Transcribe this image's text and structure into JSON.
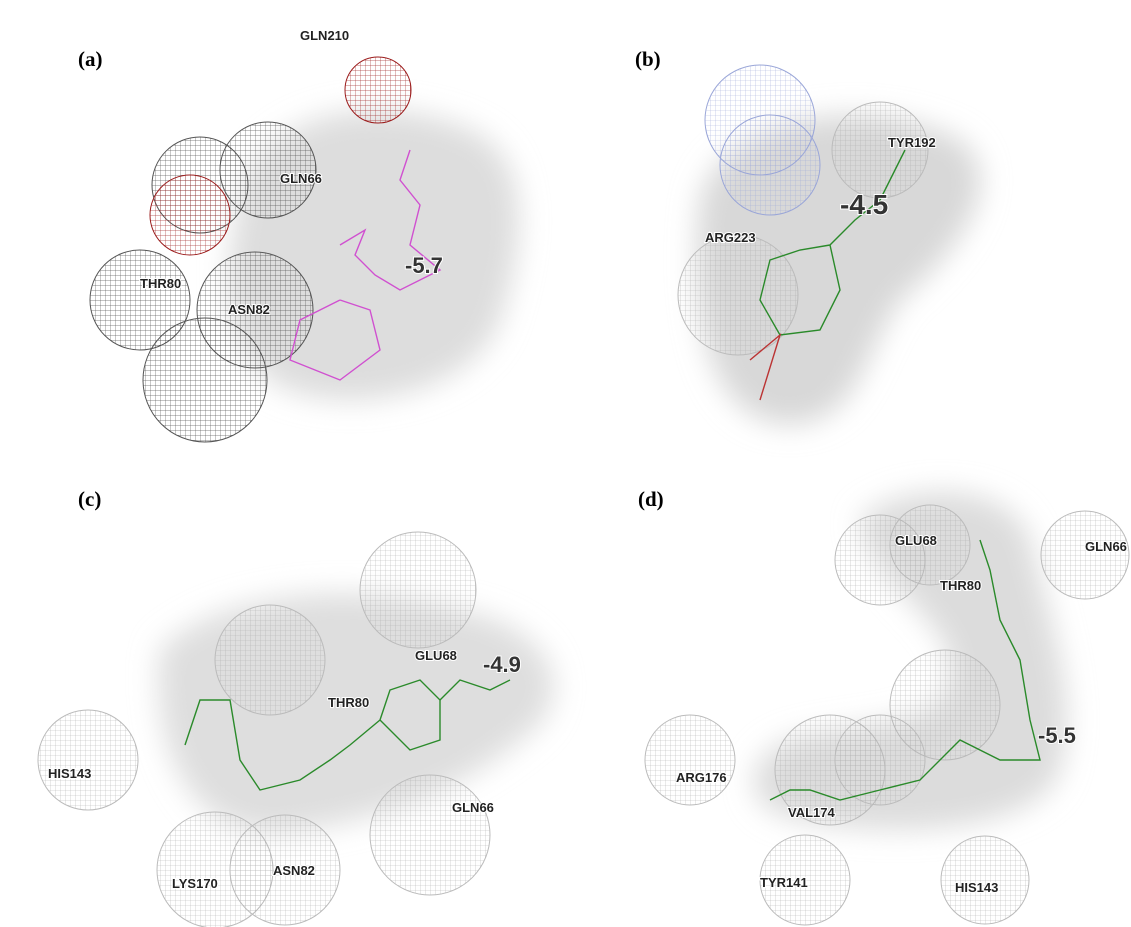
{
  "panels": [
    {
      "label": "(a)",
      "residues": [
        "GLN210",
        "GLN66",
        "THR80",
        "ASN82"
      ],
      "score": -5.7
    },
    {
      "label": "(b)",
      "residues": [
        "TYR192",
        "ARG223"
      ],
      "score": -4.5
    },
    {
      "label": "(c)",
      "residues": [
        "GLU68",
        "THR80",
        "HIS143",
        "GLN66",
        "LYS170",
        "ASN82"
      ],
      "score": -4.9
    },
    {
      "label": "(d)",
      "residues": [
        "GLU68",
        "GLN66",
        "THR80",
        "ARG176",
        "VAL174",
        "TYR141",
        "HIS143"
      ],
      "score": -5.5
    }
  ]
}
